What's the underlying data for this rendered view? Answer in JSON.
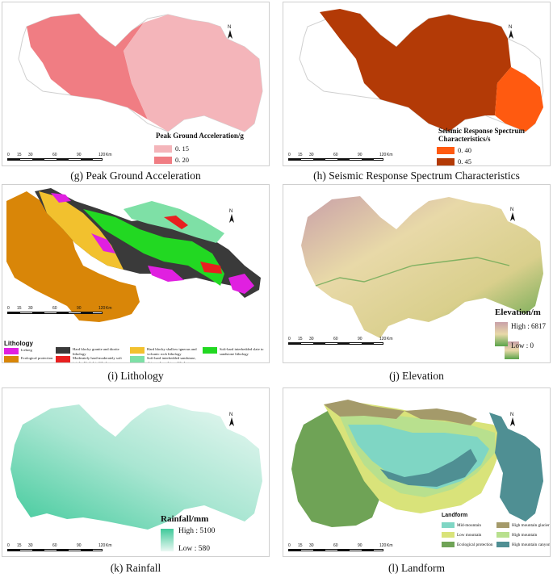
{
  "panels": [
    {
      "id": "g",
      "caption": "(g) Peak Ground Acceleration",
      "legend_title": "Peak Ground Acceleration/g",
      "classes": [
        {
          "label": "0. 15",
          "color": "#f4b5ba"
        },
        {
          "label": "0. 20",
          "color": "#f07d83"
        }
      ]
    },
    {
      "id": "h",
      "caption": "(h) Seismic Response Spectrum Characteristics",
      "legend_title": "Seismic Response Spectrum Characteristics/s",
      "classes": [
        {
          "label": "0. 40",
          "color": "#ff5a10"
        },
        {
          "label": "0. 45",
          "color": "#b33a06"
        }
      ]
    },
    {
      "id": "i",
      "caption": "(i) Lithology",
      "legend_title": "Lithology",
      "classes": [
        {
          "label": "Icebreg",
          "color": "#e020e0"
        },
        {
          "label": "Hard blocky granite and diorite lithology",
          "color": "#3a3a3a"
        },
        {
          "label": "Hard blocky shallow igneous and volcanic rock lithology",
          "color": "#f2c12e"
        },
        {
          "label": "Soft-hard interbedded slate to sandstone lithology",
          "color": "#22d822"
        },
        {
          "label": "Ecological protection area",
          "color": "#d98608"
        },
        {
          "label": "Moderately hard-moderately soft interbedded slate lithology",
          "color": "#e82020"
        },
        {
          "label": "Soft-hard interbedded sandstone, slate, and mudstone lithology",
          "color": "#7ee0a6"
        }
      ]
    },
    {
      "id": "j",
      "caption": "(j) Elevation",
      "legend_title": "Elevation/m",
      "high": "High : 6817",
      "low": "Low : 0",
      "colors": {
        "high": "#c9a0a8",
        "mid": "#e8d9a8",
        "low": "#5aa34a"
      }
    },
    {
      "id": "k",
      "caption": "(k) Rainfall",
      "legend_title": "Rainfall/mm",
      "high": "High : 5100",
      "low": "Low : 580",
      "colors": {
        "high": "#3fc99a",
        "low": "#eaf8f3"
      }
    },
    {
      "id": "l",
      "caption": "(l) Landform",
      "legend_title": "Landform",
      "classes": [
        {
          "label": "Mid-mountain",
          "color": "#7fd6c4"
        },
        {
          "label": "High mountain glacier",
          "color": "#a49a6a"
        },
        {
          "label": "Low mountain",
          "color": "#d9e37a"
        },
        {
          "label": "High mountain",
          "color": "#b8e08e"
        },
        {
          "label": "Ecological protection",
          "color": "#6fa356"
        },
        {
          "label": "High mountain canyon",
          "color": "#4f8f93"
        }
      ]
    }
  ],
  "scalebar": {
    "ticks": [
      "0",
      "15",
      "30",
      "60",
      "90",
      "120"
    ],
    "unit": "Km"
  },
  "north": "N"
}
